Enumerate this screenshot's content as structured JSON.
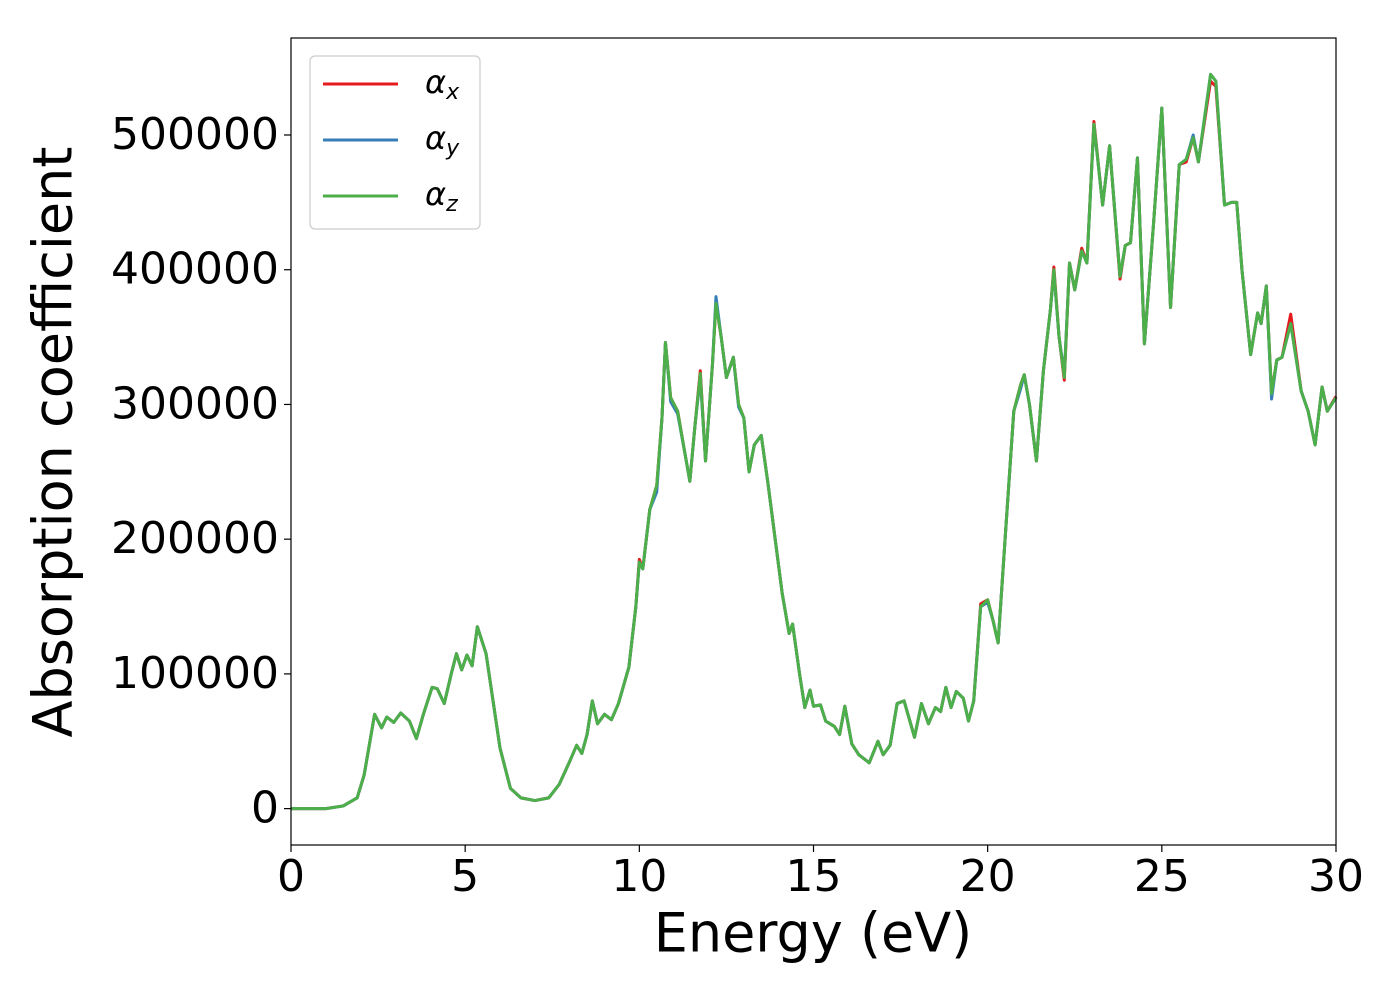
{
  "chart_data": {
    "type": "line",
    "xlabel": "Energy (eV)",
    "ylabel": "Absorption coefficient",
    "x": [
      0,
      1,
      1.5,
      1.9,
      2.1,
      2.4,
      2.6,
      2.75,
      2.95,
      3.15,
      3.4,
      3.6,
      3.8,
      4.05,
      4.2,
      4.4,
      4.6,
      4.75,
      4.9,
      5.05,
      5.2,
      5.35,
      5.6,
      5.8,
      6.0,
      6.3,
      6.6,
      7.0,
      7.4,
      7.7,
      8.0,
      8.2,
      8.35,
      8.5,
      8.65,
      8.8,
      9.0,
      9.2,
      9.4,
      9.7,
      9.9,
      10.0,
      10.1,
      10.3,
      10.5,
      10.65,
      10.75,
      10.9,
      11.1,
      11.3,
      11.45,
      11.6,
      11.75,
      11.9,
      12.1,
      12.2,
      12.35,
      12.5,
      12.7,
      12.85,
      13.0,
      13.15,
      13.3,
      13.5,
      13.7,
      13.9,
      14.1,
      14.3,
      14.4,
      14.6,
      14.75,
      14.9,
      15.0,
      15.2,
      15.35,
      15.6,
      15.75,
      15.9,
      16.1,
      16.3,
      16.6,
      16.85,
      17.0,
      17.2,
      17.4,
      17.6,
      17.9,
      18.1,
      18.3,
      18.5,
      18.65,
      18.8,
      18.95,
      19.1,
      19.3,
      19.45,
      19.6,
      19.8,
      20.0,
      20.15,
      20.3,
      20.5,
      20.75,
      20.95,
      21.05,
      21.2,
      21.4,
      21.6,
      21.8,
      21.9,
      22.05,
      22.2,
      22.35,
      22.5,
      22.7,
      22.85,
      23.05,
      23.3,
      23.5,
      23.8,
      23.95,
      24.1,
      24.3,
      24.5,
      24.75,
      25.0,
      25.25,
      25.5,
      25.7,
      25.9,
      26.05,
      26.4,
      26.55,
      26.8,
      27.0,
      27.15,
      27.3,
      27.55,
      27.75,
      27.85,
      28.0,
      28.15,
      28.3,
      28.45,
      28.7,
      29.0,
      29.2,
      29.4,
      29.6,
      29.75,
      30.0
    ],
    "series": [
      {
        "name": "αx",
        "color": "#e41a1c",
        "values": [
          0,
          0,
          2000,
          8000,
          25000,
          70000,
          60000,
          68000,
          64000,
          71000,
          65000,
          52000,
          70000,
          90000,
          89000,
          78000,
          100000,
          115000,
          103000,
          114000,
          106000,
          135000,
          115000,
          80000,
          45000,
          15000,
          8000,
          6000,
          8000,
          18000,
          35000,
          47000,
          41000,
          55000,
          80000,
          63000,
          70000,
          66000,
          78000,
          105000,
          150000,
          185000,
          178000,
          222000,
          240000,
          290000,
          346000,
          305000,
          295000,
          265000,
          243000,
          285000,
          325000,
          258000,
          330000,
          375000,
          350000,
          320000,
          335000,
          300000,
          290000,
          250000,
          270000,
          277000,
          240000,
          200000,
          160000,
          130000,
          137000,
          100000,
          75000,
          88000,
          76000,
          77000,
          65000,
          61000,
          55000,
          76000,
          48000,
          40000,
          34000,
          50000,
          40000,
          47000,
          78000,
          80000,
          53000,
          78000,
          63000,
          75000,
          72000,
          90000,
          75000,
          87000,
          82000,
          65000,
          80000,
          152000,
          155000,
          140000,
          123000,
          200000,
          295000,
          315000,
          322000,
          300000,
          258000,
          325000,
          370000,
          402000,
          350000,
          318000,
          405000,
          385000,
          416000,
          405000,
          510000,
          448000,
          492000,
          393000,
          418000,
          420000,
          483000,
          345000,
          430000,
          520000,
          372000,
          478000,
          480000,
          498000,
          480000,
          540000,
          536000,
          448000,
          450000,
          450000,
          400000,
          337000,
          368000,
          360000,
          388000,
          308000,
          333000,
          335000,
          367000,
          310000,
          295000,
          270000,
          313000,
          295000,
          306000
        ]
      },
      {
        "name": "αy",
        "color": "#377eb8",
        "values": [
          0,
          0,
          2000,
          8000,
          25000,
          70000,
          60000,
          68000,
          64000,
          71000,
          65000,
          52000,
          70000,
          90000,
          89000,
          78000,
          100000,
          115000,
          103000,
          114000,
          106000,
          135000,
          115000,
          80000,
          45000,
          15000,
          8000,
          6000,
          8000,
          18000,
          35000,
          47000,
          41000,
          55000,
          80000,
          63000,
          70000,
          66000,
          78000,
          105000,
          150000,
          183000,
          178000,
          222000,
          235000,
          290000,
          346000,
          302000,
          293000,
          265000,
          243000,
          285000,
          320000,
          258000,
          330000,
          380000,
          350000,
          320000,
          335000,
          298000,
          290000,
          250000,
          270000,
          277000,
          240000,
          200000,
          160000,
          130000,
          137000,
          100000,
          75000,
          88000,
          76000,
          77000,
          65000,
          61000,
          55000,
          76000,
          48000,
          40000,
          34000,
          50000,
          40000,
          47000,
          78000,
          80000,
          53000,
          78000,
          63000,
          75000,
          72000,
          90000,
          75000,
          87000,
          82000,
          65000,
          80000,
          150000,
          153000,
          140000,
          123000,
          200000,
          295000,
          312000,
          322000,
          300000,
          258000,
          325000,
          370000,
          398000,
          350000,
          322000,
          405000,
          385000,
          414000,
          405000,
          508000,
          448000,
          492000,
          395000,
          418000,
          420000,
          483000,
          345000,
          430000,
          520000,
          372000,
          478000,
          482000,
          500000,
          480000,
          545000,
          540000,
          448000,
          450000,
          450000,
          400000,
          337000,
          368000,
          360000,
          388000,
          304000,
          333000,
          335000,
          360000,
          310000,
          295000,
          270000,
          313000,
          295000,
          305000
        ]
      },
      {
        "name": "αz",
        "color": "#4daf4a",
        "values": [
          0,
          0,
          2000,
          8000,
          25000,
          70000,
          60000,
          68000,
          64000,
          71000,
          65000,
          52000,
          70000,
          90000,
          89000,
          78000,
          100000,
          115000,
          103000,
          114000,
          106000,
          135000,
          115000,
          80000,
          45000,
          15000,
          8000,
          6000,
          8000,
          18000,
          35000,
          47000,
          41000,
          55000,
          80000,
          63000,
          70000,
          66000,
          78000,
          105000,
          150000,
          183000,
          178000,
          222000,
          240000,
          290000,
          346000,
          305000,
          295000,
          265000,
          243000,
          285000,
          323000,
          258000,
          330000,
          375000,
          350000,
          320000,
          335000,
          300000,
          290000,
          250000,
          270000,
          277000,
          240000,
          200000,
          160000,
          130000,
          137000,
          100000,
          75000,
          88000,
          76000,
          77000,
          65000,
          61000,
          55000,
          76000,
          48000,
          40000,
          34000,
          50000,
          40000,
          47000,
          78000,
          80000,
          53000,
          78000,
          63000,
          75000,
          72000,
          90000,
          75000,
          87000,
          82000,
          65000,
          80000,
          150000,
          155000,
          140000,
          123000,
          200000,
          295000,
          315000,
          322000,
          300000,
          258000,
          325000,
          370000,
          400000,
          350000,
          320000,
          405000,
          385000,
          414000,
          405000,
          508000,
          448000,
          492000,
          395000,
          418000,
          420000,
          483000,
          345000,
          430000,
          520000,
          372000,
          478000,
          482000,
          498000,
          480000,
          545000,
          540000,
          448000,
          450000,
          450000,
          400000,
          337000,
          368000,
          360000,
          388000,
          308000,
          333000,
          335000,
          360000,
          310000,
          295000,
          270000,
          313000,
          295000,
          305000
        ]
      }
    ],
    "xlim": [
      0,
      30
    ],
    "ylim": [
      -27000,
      572000
    ],
    "xticks": [
      0,
      5,
      10,
      15,
      20,
      25,
      30
    ],
    "yticks": [
      0,
      100000,
      200000,
      300000,
      400000,
      500000
    ],
    "legend": "upper left",
    "grid": false
  }
}
